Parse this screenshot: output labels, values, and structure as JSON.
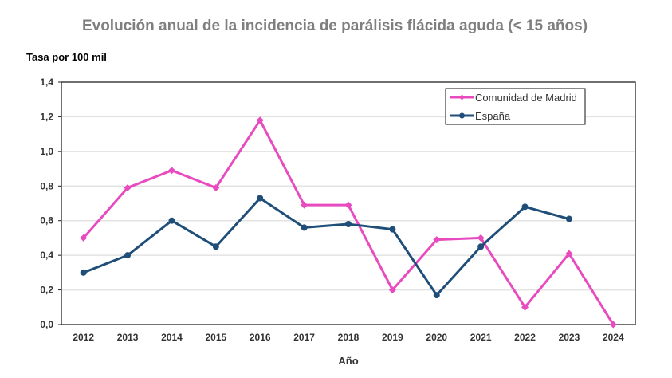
{
  "chart_data": {
    "type": "line",
    "title": "Evolución anual de la incidencia de parálisis flácida aguda (< 15 años)",
    "ylabel": "Tasa por 100 mil",
    "xlabel": "Año",
    "categories": [
      "2012",
      "2013",
      "2014",
      "2015",
      "2016",
      "2017",
      "2018",
      "2019",
      "2020",
      "2021",
      "2022",
      "2023",
      "2024"
    ],
    "ylim": [
      0,
      1.4
    ],
    "yticks": [
      "0,0",
      "0,2",
      "0,4",
      "0,6",
      "0,8",
      "1,0",
      "1,2",
      "1,4"
    ],
    "grid": true,
    "legend_position": "top-right",
    "series": [
      {
        "name": "Comunidad de Madrid",
        "color": "#e84bbf",
        "marker": "diamond",
        "values": [
          0.5,
          0.79,
          0.89,
          0.79,
          1.18,
          0.69,
          0.69,
          0.2,
          0.49,
          0.5,
          0.1,
          0.41,
          0.0
        ]
      },
      {
        "name": "España",
        "color": "#1f4e79",
        "marker": "circle",
        "values": [
          0.3,
          0.4,
          0.6,
          0.45,
          0.73,
          0.56,
          0.58,
          0.55,
          0.17,
          0.45,
          0.68,
          0.61,
          null
        ]
      }
    ]
  }
}
